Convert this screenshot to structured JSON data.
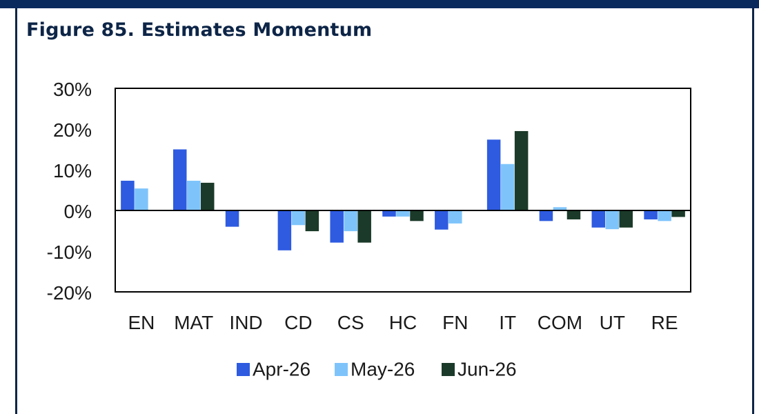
{
  "figure": {
    "title": "Figure 85. Estimates Momentum"
  },
  "colors": {
    "apr": "#2e5be0",
    "may": "#7ec4fb",
    "jun": "#1b3a29",
    "frame": "#0d2547",
    "band": "#0a2a5e"
  },
  "chart_data": {
    "type": "bar",
    "title": "",
    "xlabel": "",
    "ylabel": "",
    "categories": [
      "EN",
      "MAT",
      "IND",
      "CD",
      "CS",
      "HC",
      "FN",
      "IT",
      "COM",
      "UT",
      "RE"
    ],
    "series": [
      {
        "name": "Apr-26",
        "color": "#2e5be0",
        "values": [
          7.3,
          15.0,
          -4.0,
          -9.8,
          -7.9,
          -1.5,
          -4.7,
          17.4,
          -2.6,
          -4.2,
          -2.2
        ]
      },
      {
        "name": "May-26",
        "color": "#7ec4fb",
        "values": [
          5.4,
          7.3,
          0,
          -3.6,
          -5.1,
          -1.5,
          -3.2,
          11.4,
          0.8,
          -4.6,
          -2.6
        ]
      },
      {
        "name": "Jun-26",
        "color": "#1b3a29",
        "values": [
          0,
          6.8,
          0,
          -5.1,
          -7.9,
          -2.6,
          0,
          19.5,
          -2.2,
          -4.2,
          -1.6
        ]
      }
    ],
    "ylim": [
      -20,
      30
    ],
    "yticks": [
      30,
      20,
      10,
      0,
      -10,
      -20
    ],
    "ytick_labels": [
      "30%",
      "20%",
      "10%",
      "0%",
      "-10%",
      "-20%"
    ],
    "grid": false,
    "legend_position": "bottom-center"
  }
}
